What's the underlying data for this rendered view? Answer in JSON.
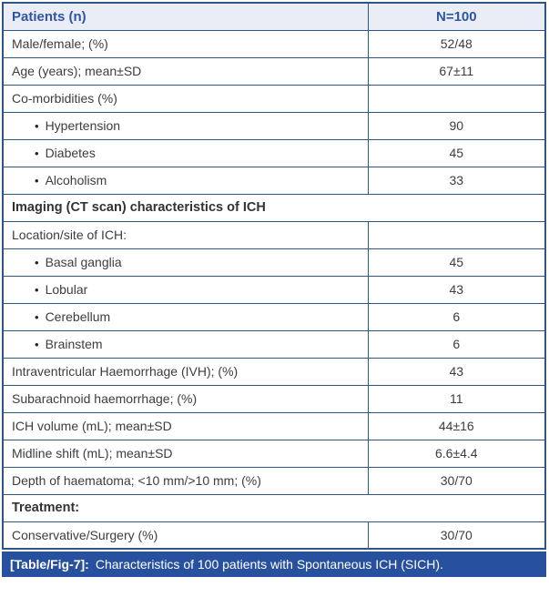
{
  "table": {
    "bullet_char": "•",
    "header": {
      "label": "Patients (n)",
      "value": "N=100"
    },
    "rows": [
      {
        "type": "data",
        "label": "Male/female; (%)",
        "value": "52/48"
      },
      {
        "type": "data",
        "label": "Age (years); mean±SD",
        "value": "67±11"
      },
      {
        "type": "data",
        "label": "Co-morbidities (%)",
        "value": ""
      },
      {
        "type": "bullet",
        "label": "Hypertension",
        "value": "90"
      },
      {
        "type": "bullet",
        "label": "Diabetes",
        "value": "45"
      },
      {
        "type": "bullet",
        "label": "Alcoholism",
        "value": "33"
      },
      {
        "type": "section",
        "label": "Imaging (CT scan) characteristics of ICH"
      },
      {
        "type": "data",
        "label": "Location/site of ICH:",
        "value": ""
      },
      {
        "type": "bullet",
        "label": "Basal ganglia",
        "value": "45"
      },
      {
        "type": "bullet",
        "label": "Lobular",
        "value": "43"
      },
      {
        "type": "bullet",
        "label": "Cerebellum",
        "value": "6"
      },
      {
        "type": "bullet",
        "label": "Brainstem",
        "value": "6"
      },
      {
        "type": "data",
        "label": "Intraventricular Haemorrhage (IVH); (%)",
        "value": "43"
      },
      {
        "type": "data",
        "label": "Subarachnoid haemorrhage; (%)",
        "value": "11"
      },
      {
        "type": "data",
        "label": "ICH volume (mL); mean±SD",
        "value": "44±16"
      },
      {
        "type": "data",
        "label": "Midline shift (mL); mean±SD",
        "value": "6.6±4.4"
      },
      {
        "type": "data",
        "label": "Depth of haematoma; <10 mm/>10 mm; (%)",
        "value": "30/70"
      },
      {
        "type": "section",
        "label": "Treatment:"
      },
      {
        "type": "data",
        "label": "Conservative/Surgery (%)",
        "value": "30/70"
      }
    ]
  },
  "caption": {
    "tag": "[Table/Fig-7]:",
    "text": "Characteristics of 100 patients with Spontaneous ICH (SICH)."
  },
  "colors": {
    "border": "#2f5583",
    "header_background": "#eaedf6",
    "header_text": "#2f55a4",
    "body_text": "#3d3d3d",
    "caption_background": "#27509e",
    "caption_text": "#ffffff"
  }
}
